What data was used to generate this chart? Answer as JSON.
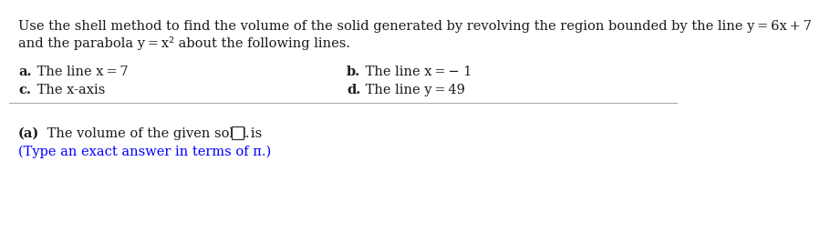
{
  "bg_color": "#ffffff",
  "line1": "Use the shell method to find the volume of the solid generated by revolving the region bounded by the line y = 6x + 7",
  "line2": "and the parabola y = x² about the following lines.",
  "item_a_label": "a.",
  "item_a_text": " The line x = 7",
  "item_b_label": "b.",
  "item_b_text": " The line x = − 1",
  "item_c_label": "c.",
  "item_c_text": " The x-axis",
  "item_d_label": "d.",
  "item_d_text": " The line y = 49",
  "answer_bold": "(a)",
  "answer_rest": " The volume of the given solid is ",
  "answer_after_box": ".",
  "hint_text": "(Type an exact answer in terms of π.)",
  "hint_color": "#0000ff",
  "text_color": "#1a1a1a",
  "font_size": 10.5,
  "divider_color": "#aaaaaa",
  "box_color": "#333333"
}
